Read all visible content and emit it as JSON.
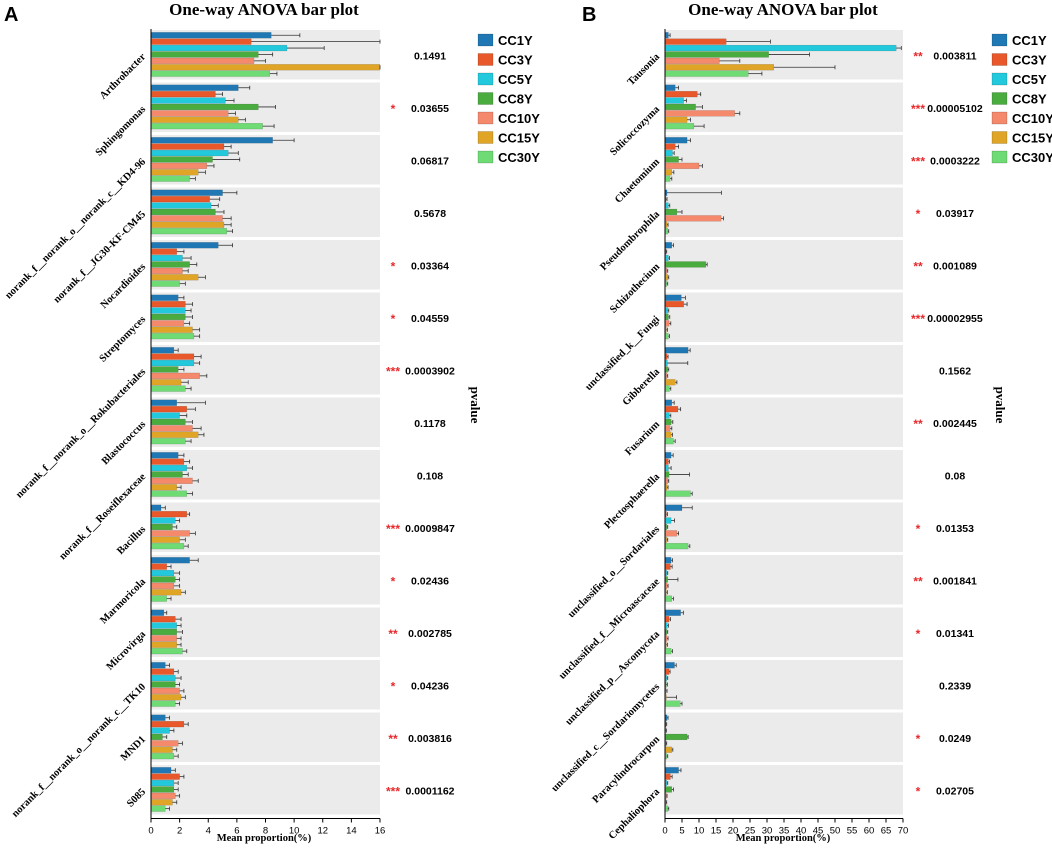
{
  "chart_data": [
    {
      "type": "bar",
      "orientation": "horizontal",
      "panel_label": "A",
      "title": "One-way ANOVA bar plot",
      "xlabel": "Mean proportion(%)",
      "pvalue_label": "pvalue",
      "xlim": [
        0,
        16
      ],
      "xticks": [
        0,
        2,
        4,
        6,
        8,
        10,
        12,
        14,
        16
      ],
      "categories": [
        "Arthrobacter",
        "Sphingomonas",
        "norank_f__norank_o__norank_c__KD4-96",
        "norank_f__JG30-KF-CM45",
        "Nocardioides",
        "Streptomyces",
        "norank_f__norank_o__Rokubacteriales",
        "Blastococcus",
        "norank_f__Roseiflexaceae",
        "Bacillus",
        "Marmoricola",
        "Microvirga",
        "norank_f__norank_o__norank_c__TK10",
        "MND1",
        "S085"
      ],
      "series": [
        {
          "name": "CC1Y",
          "color": "#1f78b4",
          "values": [
            8.4,
            6.1,
            8.5,
            5.0,
            4.7,
            1.9,
            1.6,
            1.8,
            1.9,
            0.7,
            2.7,
            0.9,
            1.0,
            1.0,
            1.4
          ],
          "errors": [
            2.0,
            0.8,
            1.5,
            1.0,
            1.0,
            0.4,
            0.3,
            2.0,
            0.4,
            0.3,
            0.6,
            0.2,
            0.3,
            0.3,
            0.3
          ]
        },
        {
          "name": "CC3Y",
          "color": "#e8582a",
          "values": [
            7.0,
            4.5,
            5.1,
            4.1,
            1.8,
            2.4,
            3.0,
            2.5,
            2.3,
            2.5,
            1.1,
            1.7,
            1.6,
            2.3,
            2.0
          ],
          "errors": [
            9.0,
            0.5,
            0.5,
            0.7,
            0.5,
            0.5,
            0.5,
            0.6,
            0.4,
            0.2,
            0.3,
            0.4,
            0.3,
            0.3,
            0.3
          ]
        },
        {
          "name": "CC5Y",
          "color": "#22c9dc",
          "values": [
            9.5,
            5.2,
            5.4,
            4.2,
            2.2,
            2.4,
            3.0,
            2.0,
            2.5,
            1.7,
            1.6,
            1.8,
            1.7,
            1.3,
            1.6
          ],
          "errors": [
            2.6,
            0.6,
            0.7,
            0.5,
            0.6,
            0.4,
            0.4,
            0.5,
            0.4,
            0.3,
            0.4,
            0.3,
            0.4,
            0.3,
            0.3
          ]
        },
        {
          "name": "CC8Y",
          "color": "#4aab3f",
          "values": [
            7.5,
            7.5,
            4.3,
            4.5,
            2.7,
            2.4,
            1.9,
            2.4,
            2.2,
            1.5,
            1.7,
            1.8,
            1.7,
            0.8,
            1.6
          ],
          "errors": [
            1.0,
            1.2,
            1.9,
            0.6,
            0.5,
            0.5,
            0.4,
            0.5,
            0.4,
            0.3,
            0.3,
            0.4,
            0.3,
            0.3,
            0.3
          ]
        },
        {
          "name": "CC10Y",
          "color": "#f4896b",
          "values": [
            7.2,
            5.4,
            3.9,
            5.0,
            2.2,
            2.3,
            3.4,
            2.9,
            2.9,
            2.7,
            1.6,
            1.8,
            2.0,
            1.9,
            1.7
          ],
          "errors": [
            0.8,
            0.5,
            0.5,
            0.6,
            0.4,
            0.4,
            0.5,
            0.6,
            0.4,
            0.4,
            0.4,
            0.3,
            0.3,
            0.3,
            0.3
          ]
        },
        {
          "name": "CC15Y",
          "color": "#e0a526",
          "values": [
            16.0,
            6.1,
            3.3,
            5.1,
            3.3,
            2.9,
            2.1,
            3.3,
            1.8,
            2.0,
            2.1,
            1.8,
            2.1,
            1.5,
            1.5
          ],
          "errors": [
            0.6,
            0.5,
            0.5,
            0.5,
            0.5,
            0.5,
            0.5,
            0.4,
            0.3,
            0.4,
            0.3,
            0.3,
            0.3,
            0.3,
            0.3
          ]
        },
        {
          "name": "CC30Y",
          "color": "#6edb74",
          "values": [
            8.3,
            7.8,
            2.7,
            5.3,
            2.0,
            3.0,
            2.4,
            2.4,
            2.5,
            2.3,
            1.1,
            2.2,
            1.7,
            1.6,
            1.0
          ],
          "errors": [
            0.5,
            0.8,
            0.4,
            0.4,
            0.4,
            0.4,
            0.4,
            0.4,
            0.4,
            0.3,
            0.3,
            0.3,
            0.3,
            0.3,
            0.3
          ]
        }
      ],
      "pvalues": [
        "0.1491",
        "0.03655",
        "0.06817",
        "0.5678",
        "0.03364",
        "0.04559",
        "0.0003902",
        "0.1178",
        "0.108",
        "0.0009847",
        "0.02436",
        "0.002785",
        "0.04236",
        "0.003816",
        "0.0001162"
      ],
      "significance": [
        "",
        "*",
        "",
        "",
        "*",
        "*",
        "***",
        "",
        "",
        "***",
        "*",
        "**",
        "*",
        "**",
        "***"
      ]
    },
    {
      "type": "bar",
      "orientation": "horizontal",
      "panel_label": "B",
      "title": "One-way ANOVA bar plot",
      "xlabel": "Mean proportion(%)",
      "pvalue_label": "pvalue",
      "xlim": [
        0,
        70
      ],
      "xticks": [
        0,
        5,
        10,
        15,
        20,
        25,
        30,
        35,
        40,
        45,
        50,
        55,
        60,
        65,
        70
      ],
      "categories": [
        "Tausonia",
        "Solicoccozyma",
        "Chaetomium",
        "Pseudombrophila",
        "Schizothecium",
        "unclassified_k__Fungi",
        "Gibberella",
        "Fusarium",
        "Plectosphaerella",
        "unclassified_o__Sordariales",
        "unclassified_f__Microascaceae",
        "unclassified_p__Ascomycota",
        "unclassified_c__Sordariomycetes",
        "Paracylindrocarpon",
        "Cephaliophora"
      ],
      "series": [
        {
          "name": "CC1Y",
          "color": "#1f78b4",
          "values": [
            1.0,
            3.0,
            6.5,
            0.6,
            2.0,
            4.8,
            6.8,
            2.0,
            1.8,
            5.0,
            1.8,
            4.6,
            2.8,
            0.6,
            4.0
          ],
          "errors": [
            0.5,
            1.0,
            1.0,
            16.0,
            0.5,
            1.2,
            0.6,
            0.7,
            0.6,
            3.0,
            0.4,
            0.8,
            0.5,
            0.3,
            0.7
          ]
        },
        {
          "name": "CC3Y",
          "color": "#e8582a",
          "values": [
            18.0,
            9.5,
            3.0,
            0.3,
            0.3,
            5.5,
            0.6,
            3.8,
            1.0,
            0.4,
            1.6,
            1.2,
            1.2,
            0.3,
            1.6
          ],
          "errors": [
            13.0,
            1.0,
            1.0,
            0.3,
            0.2,
            1.0,
            0.3,
            0.8,
            0.3,
            0.3,
            0.5,
            0.4,
            0.3,
            0.2,
            0.5
          ]
        },
        {
          "name": "CC5Y",
          "color": "#22c9dc",
          "values": [
            68.0,
            5.5,
            2.2,
            1.0,
            1.0,
            0.8,
            0.7,
            1.3,
            1.0,
            1.8,
            0.5,
            0.7,
            0.5,
            0.2,
            0.5
          ],
          "errors": [
            1.5,
            0.8,
            0.5,
            0.4,
            0.3,
            0.3,
            6.0,
            0.4,
            0.8,
            1.0,
            0.3,
            0.3,
            0.3,
            0.2,
            0.3
          ]
        },
        {
          "name": "CC8Y",
          "color": "#4aab3f",
          "values": [
            30.5,
            9.0,
            4.0,
            3.5,
            12.0,
            1.0,
            0.8,
            1.8,
            1.2,
            0.5,
            0.8,
            0.5,
            0.4,
            6.5,
            2.0
          ],
          "errors": [
            12.0,
            2.0,
            1.0,
            1.5,
            0.4,
            0.4,
            0.3,
            0.5,
            6.0,
            0.3,
            3.0,
            0.3,
            0.3,
            0.3,
            0.5
          ]
        },
        {
          "name": "CC10Y",
          "color": "#f4896b",
          "values": [
            16.0,
            20.5,
            10.0,
            16.5,
            0.5,
            1.2,
            0.5,
            1.5,
            0.8,
            3.5,
            0.6,
            0.6,
            0.3,
            0.3,
            0.4
          ],
          "errors": [
            6.0,
            1.5,
            1.0,
            0.7,
            0.3,
            0.5,
            0.3,
            0.5,
            0.3,
            0.5,
            0.3,
            0.3,
            0.3,
            0.2,
            0.2
          ]
        },
        {
          "name": "CC15Y",
          "color": "#e0a526",
          "values": [
            32.0,
            6.5,
            2.0,
            0.6,
            0.8,
            0.4,
            3.0,
            1.8,
            0.6,
            0.5,
            0.4,
            0.4,
            0.4,
            2.0,
            0.3
          ],
          "errors": [
            18.0,
            1.0,
            0.6,
            0.3,
            0.3,
            0.3,
            0.5,
            0.4,
            0.3,
            0.3,
            0.3,
            0.3,
            3.0,
            0.3,
            0.2
          ]
        },
        {
          "name": "CC30Y",
          "color": "#6edb74",
          "values": [
            24.5,
            8.5,
            1.5,
            0.8,
            0.5,
            1.0,
            1.3,
            2.5,
            7.5,
            6.8,
            2.0,
            1.8,
            4.5,
            0.5,
            0.8
          ],
          "errors": [
            4.0,
            3.0,
            0.5,
            0.3,
            0.3,
            0.3,
            0.4,
            0.5,
            0.5,
            0.5,
            0.5,
            0.4,
            0.5,
            0.3,
            0.3
          ]
        }
      ],
      "pvalues": [
        "0.003811",
        "0.00005102",
        "0.0003222",
        "0.03917",
        "0.001089",
        "0.00002955",
        "0.1562",
        "0.002445",
        "0.08",
        "0.01353",
        "0.001841",
        "0.01341",
        "0.2339",
        "0.0249",
        "0.02705"
      ],
      "significance": [
        "**",
        "***",
        "***",
        "*",
        "**",
        "***",
        "",
        "**",
        "",
        "*",
        "**",
        "*",
        "",
        "*",
        "*"
      ]
    }
  ]
}
